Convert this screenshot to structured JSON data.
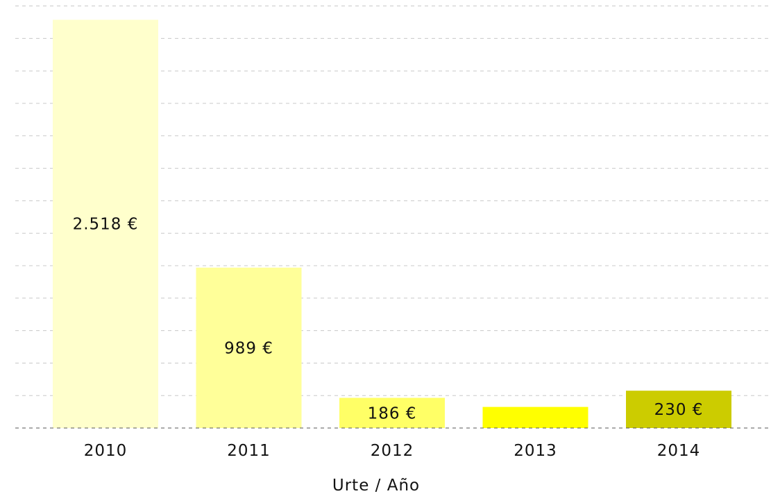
{
  "chart_data": {
    "type": "bar",
    "title": "",
    "xlabel": "Urte / Año",
    "ylabel": "",
    "categories": [
      "2010",
      "2011",
      "2012",
      "2013",
      "2014"
    ],
    "values": [
      2518,
      989,
      186,
      130,
      230
    ],
    "data_labels": [
      "2.518 €",
      "989 €",
      "186 €",
      "",
      "230 €"
    ],
    "colors": [
      "#ffffcc",
      "#ffff99",
      "#ffff66",
      "#ffff00",
      "#cccc00"
    ],
    "ylim": [
      0,
      2520
    ],
    "grid": true,
    "legend": "none"
  }
}
